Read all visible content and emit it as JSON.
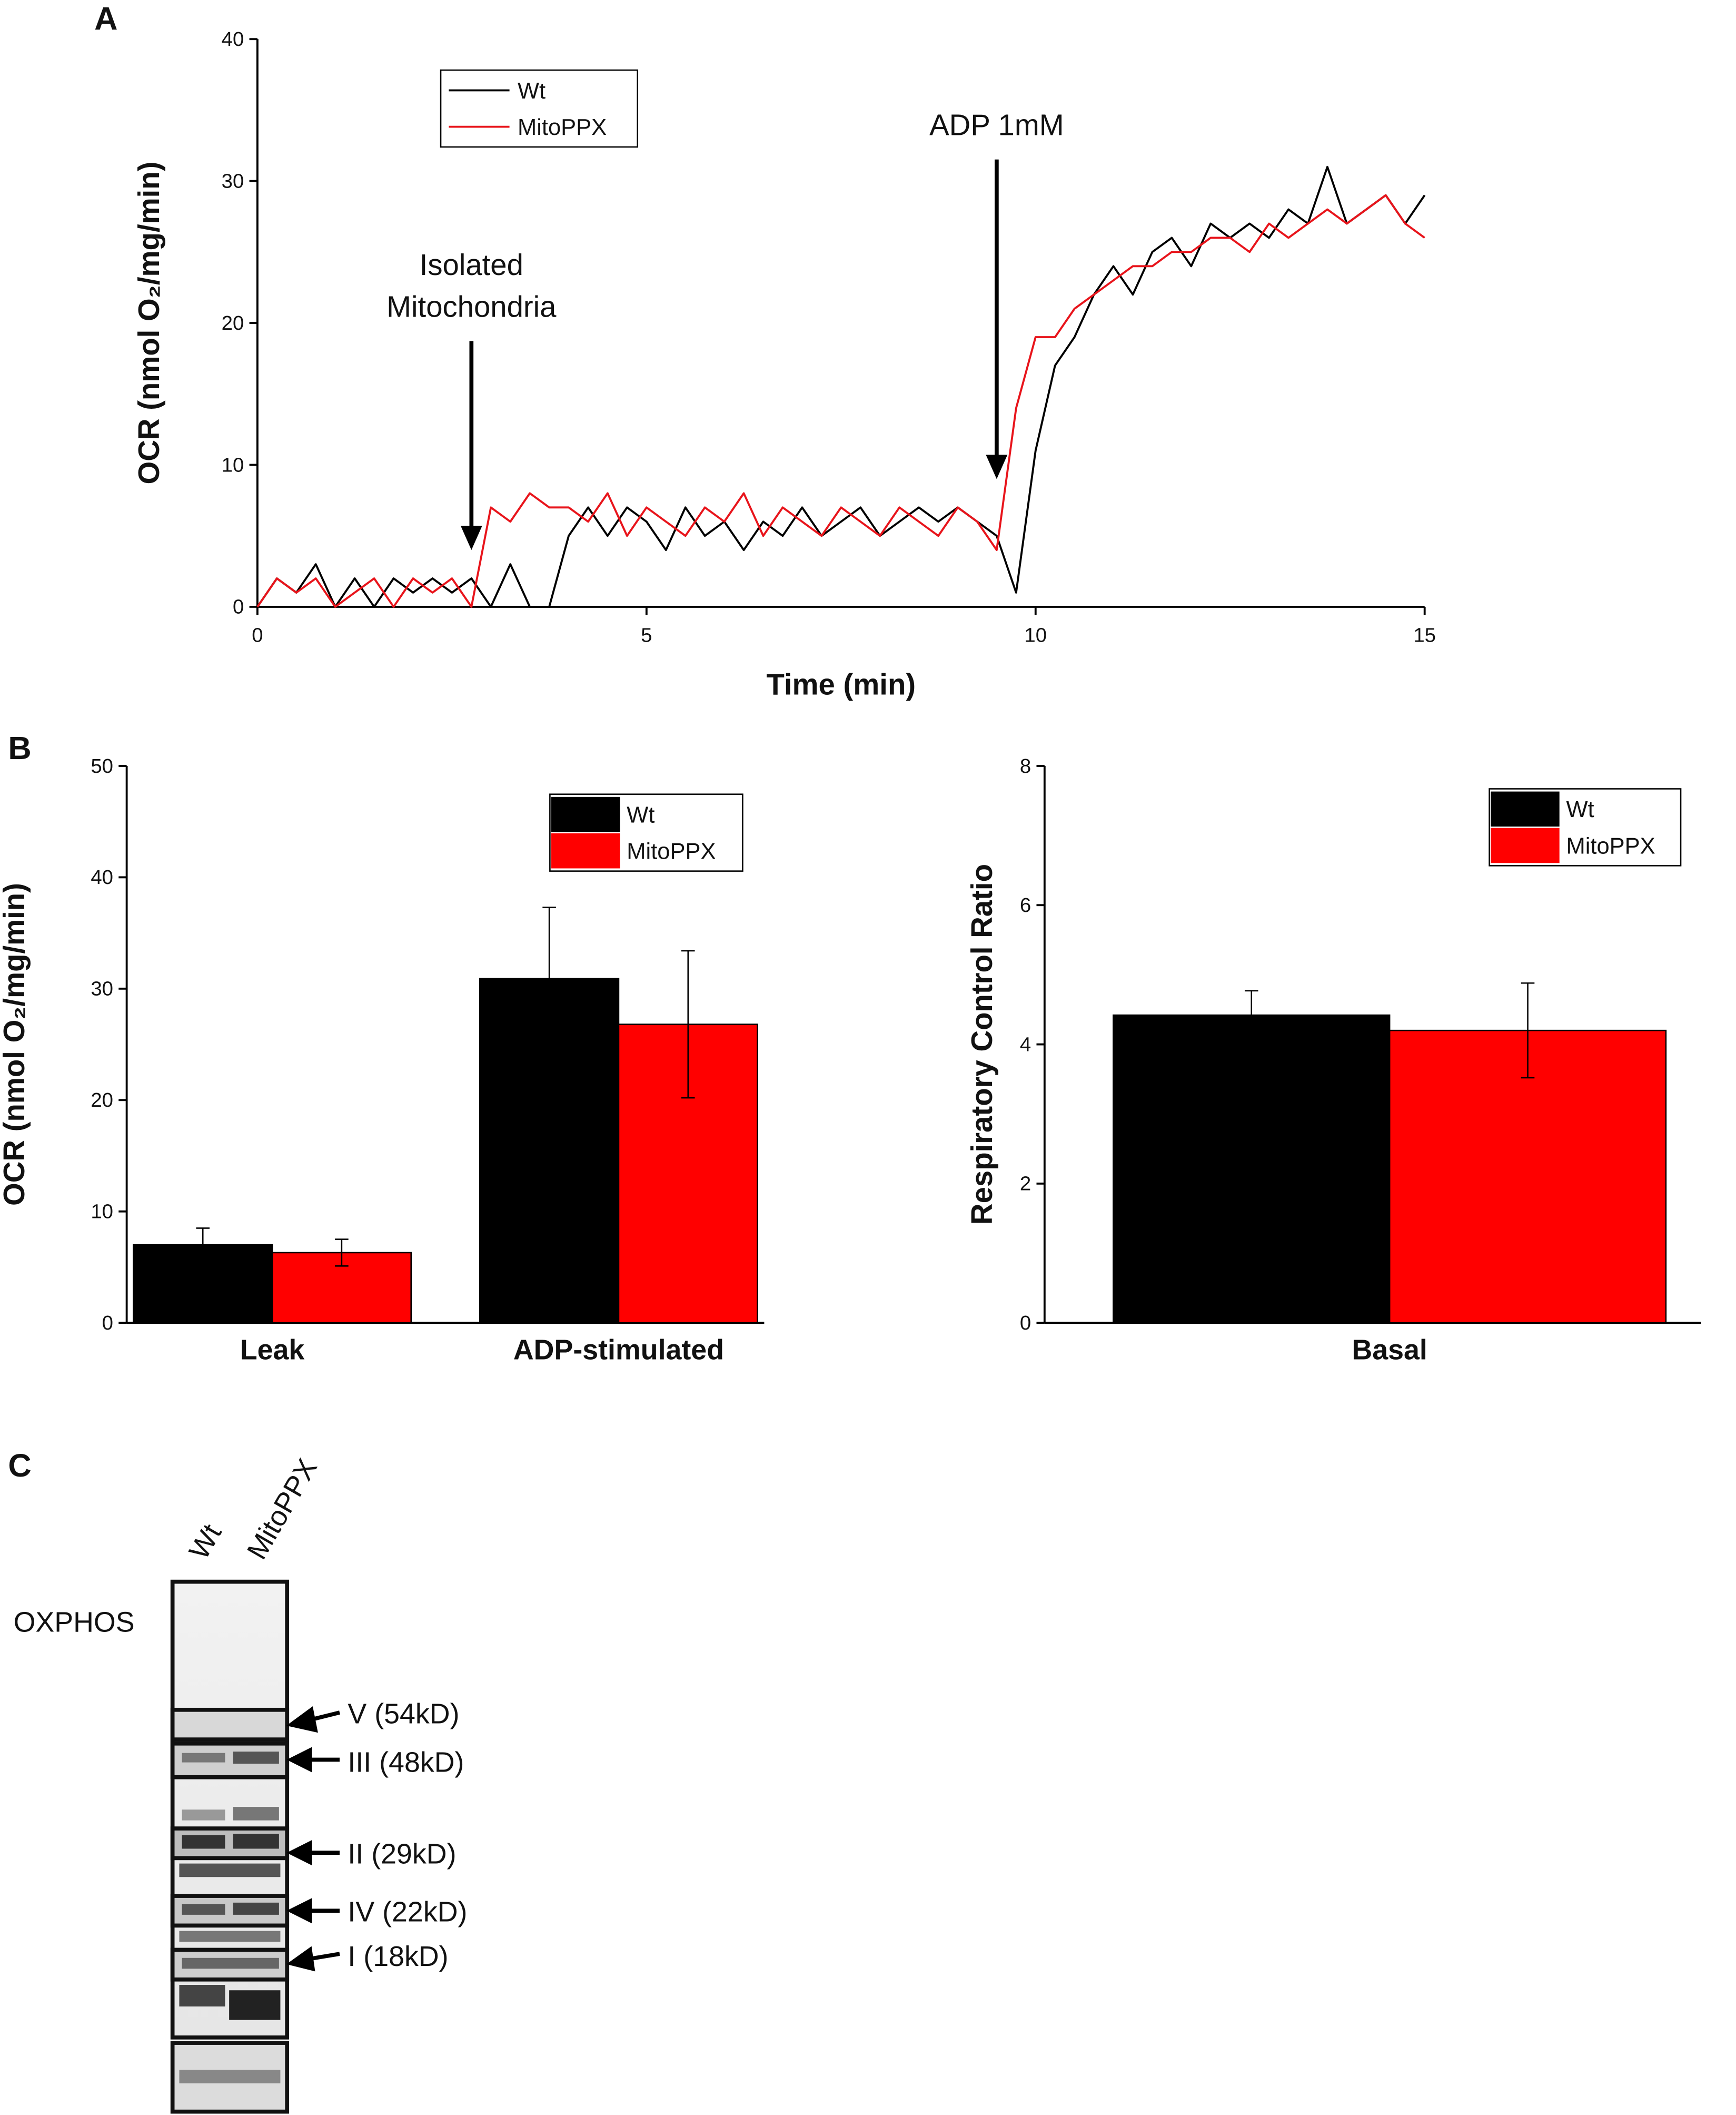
{
  "panels": [
    "A",
    "B",
    "C"
  ],
  "chart_data": [
    {
      "type": "line",
      "xlabel": "Time (min)",
      "ylabel": "OCR (nmol O₂/mg/min)",
      "xlim": [
        0,
        15
      ],
      "ylim": [
        0,
        40
      ],
      "xticks": [
        0,
        5,
        10,
        15
      ],
      "yticks": [
        0,
        10,
        20,
        30,
        40
      ],
      "legend": "upper left",
      "x": [
        0,
        0.25,
        0.5,
        0.75,
        1,
        1.25,
        1.5,
        1.75,
        2,
        2.25,
        2.5,
        2.75,
        3,
        3.25,
        3.5,
        3.75,
        4,
        4.25,
        4.5,
        4.75,
        5,
        5.25,
        5.5,
        5.75,
        6,
        6.25,
        6.5,
        6.75,
        7,
        7.25,
        7.5,
        7.75,
        8,
        8.25,
        8.5,
        8.75,
        9,
        9.25,
        9.5,
        9.75,
        10,
        10.25,
        10.5,
        10.75,
        11,
        11.25,
        11.5,
        11.75,
        12,
        12.25,
        12.5,
        12.75,
        13,
        13.25,
        13.5,
        13.75,
        14,
        14.25,
        14.5,
        14.75,
        15
      ],
      "series": [
        {
          "name": "Wt",
          "color": "#000000",
          "values": [
            0,
            2,
            1,
            3,
            0,
            2,
            0,
            2,
            1,
            2,
            1,
            2,
            0,
            3,
            0,
            0,
            5,
            7,
            5,
            7,
            6,
            4,
            7,
            5,
            6,
            4,
            6,
            5,
            7,
            5,
            6,
            7,
            5,
            6,
            7,
            6,
            7,
            6,
            5,
            1,
            11,
            17,
            19,
            22,
            24,
            22,
            25,
            26,
            24,
            27,
            26,
            27,
            26,
            28,
            27,
            31,
            27,
            28,
            29,
            27,
            29
          ]
        },
        {
          "name": "MitoPPX",
          "color": "#e8141b",
          "values": [
            0,
            2,
            1,
            2,
            0,
            1,
            2,
            0,
            2,
            1,
            2,
            0,
            7,
            6,
            8,
            7,
            7,
            6,
            8,
            5,
            7,
            6,
            5,
            7,
            6,
            8,
            5,
            7,
            6,
            5,
            7,
            6,
            5,
            7,
            6,
            5,
            7,
            6,
            4,
            14,
            19,
            19,
            21,
            22,
            23,
            24,
            24,
            25,
            25,
            26,
            26,
            25,
            27,
            26,
            27,
            28,
            27,
            28,
            29,
            27,
            26
          ]
        }
      ],
      "annotations": [
        {
          "text": [
            "Isolated",
            "Mitochondria"
          ],
          "x": 2.75,
          "y": 4
        },
        {
          "text": [
            "ADP 1mM"
          ],
          "x": 9.5,
          "y": 9
        }
      ]
    },
    {
      "type": "bar",
      "ylabel": "OCR (nmol O₂/mg/min)",
      "ylim": [
        0,
        50
      ],
      "yticks": [
        0,
        10,
        20,
        30,
        40,
        50
      ],
      "legend": "upper right",
      "categories": [
        "Leak",
        "ADP-stimulated"
      ],
      "series": [
        {
          "name": "Wt",
          "color": "#000000",
          "values": [
            7.0,
            30.9
          ],
          "errors": [
            1.5,
            6.4
          ]
        },
        {
          "name": "MitoPPX",
          "color": "#ff0000",
          "values": [
            6.3,
            26.8
          ],
          "errors": [
            1.2,
            6.6
          ]
        }
      ]
    },
    {
      "type": "bar",
      "ylabel": "Respiratory Control Ratio",
      "ylim": [
        0,
        8
      ],
      "yticks": [
        0,
        2,
        4,
        6,
        8
      ],
      "legend": "upper right",
      "categories": [
        "Basal"
      ],
      "series": [
        {
          "name": "Wt",
          "color": "#000000",
          "values": [
            4.42
          ],
          "errors": [
            0.35
          ]
        },
        {
          "name": "MitoPPX",
          "color": "#ff0000",
          "values": [
            4.2
          ],
          "errors": [
            0.68
          ]
        }
      ]
    }
  ],
  "blot": {
    "lanes": [
      "Wt",
      "MitoPPX"
    ],
    "label": "OXPHOS",
    "bands": [
      "V (54kD)",
      "III (48kD)",
      "II (29kD)",
      "IV (22kD)",
      "I (18kD)"
    ]
  }
}
